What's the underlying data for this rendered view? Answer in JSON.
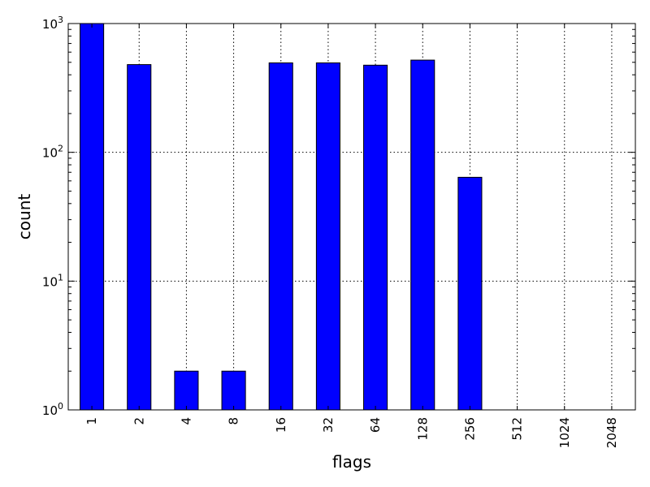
{
  "chart_data": {
    "type": "bar",
    "xlabel": "flags",
    "ylabel": "count",
    "yscale": "log",
    "ylim": [
      1,
      1000
    ],
    "grid": true,
    "bar_color": "#0000ff",
    "categories": [
      "1",
      "2",
      "4",
      "8",
      "16",
      "32",
      "64",
      "128",
      "256",
      "512",
      "1024",
      "2048"
    ],
    "values": [
      1000,
      480,
      2,
      2,
      495,
      495,
      475,
      520,
      64,
      0,
      0,
      0
    ],
    "y_ticks": [
      {
        "base": "10",
        "exp": "0",
        "value": 1
      },
      {
        "base": "10",
        "exp": "1",
        "value": 10
      },
      {
        "base": "10",
        "exp": "2",
        "value": 100
      },
      {
        "base": "10",
        "exp": "3",
        "value": 1000
      }
    ]
  }
}
